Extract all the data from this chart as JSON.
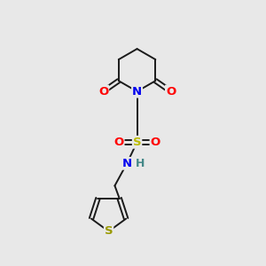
{
  "background_color": "#e8e8e8",
  "bond_color": "#1a1a1a",
  "atom_colors": {
    "N": "#0000ee",
    "O": "#ff0000",
    "S_sulfonamide": "#bbbb00",
    "S_thiophene": "#999900",
    "H": "#448888",
    "C": "#1a1a1a"
  },
  "fig_width": 3.0,
  "fig_height": 3.0,
  "dpi": 100,
  "lw": 1.4,
  "fontsize": 9.5,
  "xlim": [
    0,
    10
  ],
  "ylim": [
    0,
    13
  ]
}
